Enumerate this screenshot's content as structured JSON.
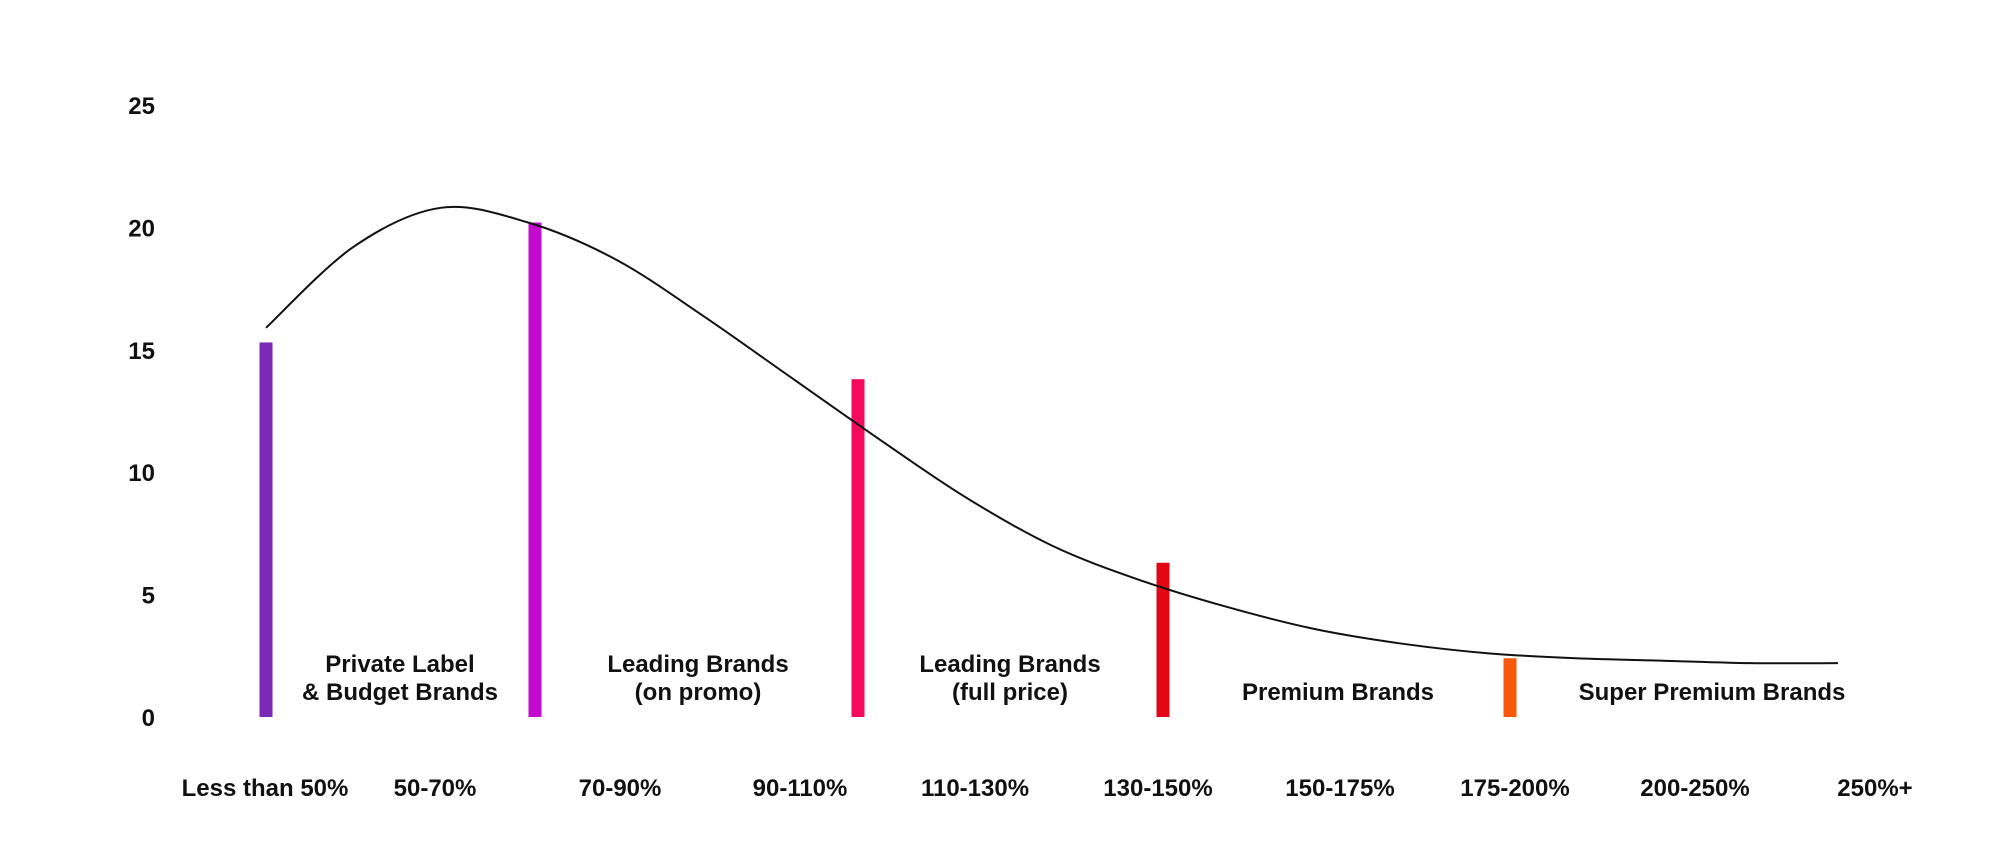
{
  "chart_data": {
    "type": "bar",
    "title": "",
    "xlabel": "",
    "ylabel": "",
    "ylim": [
      0,
      25
    ],
    "yticks": [
      0,
      5,
      10,
      15,
      20,
      25
    ],
    "grid": false,
    "categories": [
      "Less than 50%",
      "50-70%",
      "70-90%",
      "90-110%",
      "110-130%",
      "130-150%",
      "150-175%",
      "175-200%",
      "200-250%",
      "250%+"
    ],
    "bars": [
      {
        "category": "Less than 50%",
        "value": 15.3,
        "color": "#7B2AB5"
      },
      {
        "category": "50-70%",
        "value": 20.2,
        "color": "#C40ACC"
      },
      {
        "category": "90-110%",
        "value": 13.8,
        "color": "#F50A5C"
      },
      {
        "category": "130-150%",
        "value": 6.3,
        "color": "#E30613"
      },
      {
        "category": "175-200%",
        "value": 2.4,
        "color": "#F7580A"
      }
    ],
    "curve": {
      "color": "#111111",
      "points": [
        {
          "x": 0.0,
          "y": 15.9
        },
        {
          "x": 0.5,
          "y": 19.2
        },
        {
          "x": 1.0,
          "y": 20.8
        },
        {
          "x": 1.5,
          "y": 20.2
        },
        {
          "x": 2.0,
          "y": 18.7
        },
        {
          "x": 2.5,
          "y": 16.4
        },
        {
          "x": 3.0,
          "y": 13.9
        },
        {
          "x": 3.5,
          "y": 11.4
        },
        {
          "x": 4.0,
          "y": 9.0
        },
        {
          "x": 4.5,
          "y": 7.0
        },
        {
          "x": 5.0,
          "y": 5.6
        },
        {
          "x": 5.5,
          "y": 4.5
        },
        {
          "x": 6.0,
          "y": 3.6
        },
        {
          "x": 6.5,
          "y": 3.0
        },
        {
          "x": 7.0,
          "y": 2.6
        },
        {
          "x": 7.5,
          "y": 2.4
        },
        {
          "x": 8.0,
          "y": 2.3
        },
        {
          "x": 8.5,
          "y": 2.2
        },
        {
          "x": 9.0,
          "y": 2.2
        }
      ]
    },
    "segment_labels": [
      {
        "lines": [
          "Private Label",
          "& Budget Brands"
        ],
        "x": 0.5
      },
      {
        "lines": [
          "Leading Brands",
          "(on promo)"
        ],
        "x": 1.5
      },
      {
        "lines": [
          "Leading Brands",
          "(full price)"
        ],
        "x": 2.5
      },
      {
        "lines": [
          "Premium Brands"
        ],
        "x": 3.5
      },
      {
        "lines": [
          "Super Premium Brands"
        ],
        "x": 4.5
      }
    ]
  }
}
